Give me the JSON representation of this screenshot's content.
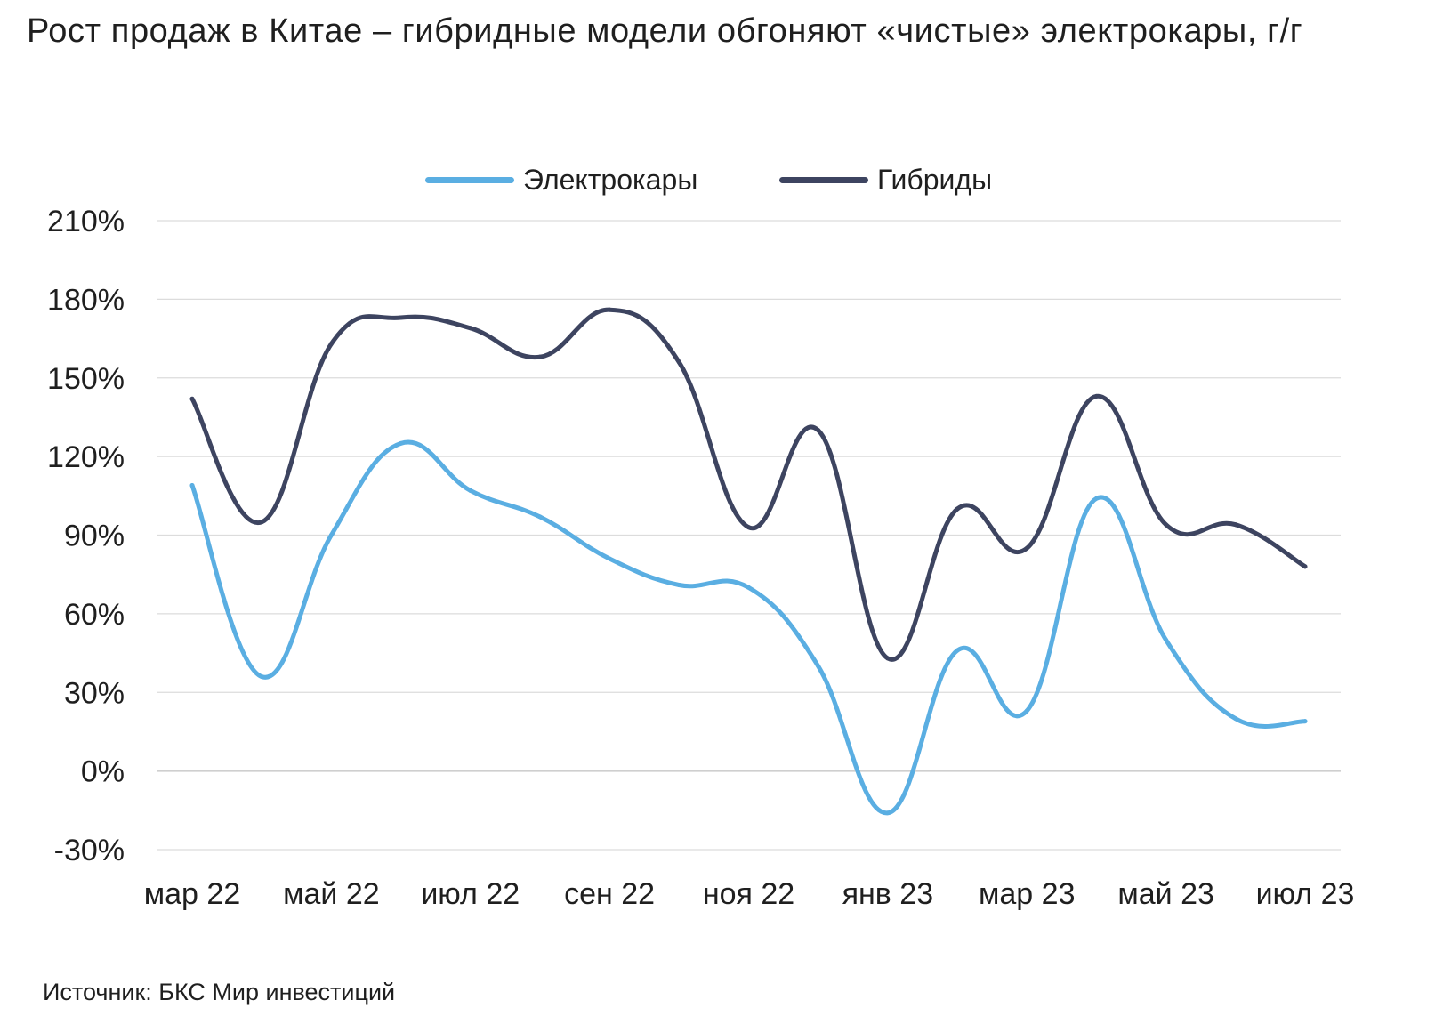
{
  "title": "Рост продаж в Китае – гибридные модели обгоняют «чистые» электрокары, г/г",
  "source": "Источник: БКС Мир инвестиций",
  "chart_data": {
    "type": "line",
    "title": "Рост продаж в Китае – гибридные модели обгоняют «чистые» электрокары, г/г",
    "xlabel": "",
    "ylabel": "",
    "x": [
      "мар 22",
      "апр 22",
      "май 22",
      "июн 22",
      "июл 22",
      "авг 22",
      "сен 22",
      "окт 22",
      "ноя 22",
      "дек 22",
      "янв 23",
      "фев 23",
      "мар 23",
      "апр 23",
      "май 23",
      "июн 23",
      "июл 23"
    ],
    "x_tick_labels": [
      "мар 22",
      "май 22",
      "июл 22",
      "сен 22",
      "ноя 22",
      "янв 23",
      "мар 23",
      "май 23",
      "июл 23"
    ],
    "y_tick_labels": [
      "210%",
      "180%",
      "150%",
      "120%",
      "90%",
      "60%",
      "30%",
      "0%",
      "-30%"
    ],
    "ylim": [
      -30,
      210
    ],
    "y_unit": "%",
    "grid": "horizontal",
    "legend_position": "top-center",
    "series": [
      {
        "name": "Электрокары",
        "color": "#5aaee2",
        "values": [
          109,
          36,
          90,
          125,
          107,
          97,
          81,
          71,
          70,
          40,
          -16,
          46,
          23,
          104,
          50,
          20,
          19
        ]
      },
      {
        "name": "Гибриды",
        "color": "#3d4460",
        "values": [
          142,
          95,
          163,
          173,
          169,
          158,
          176,
          156,
          93,
          130,
          43,
          100,
          85,
          143,
          94,
          94,
          78
        ]
      }
    ]
  }
}
